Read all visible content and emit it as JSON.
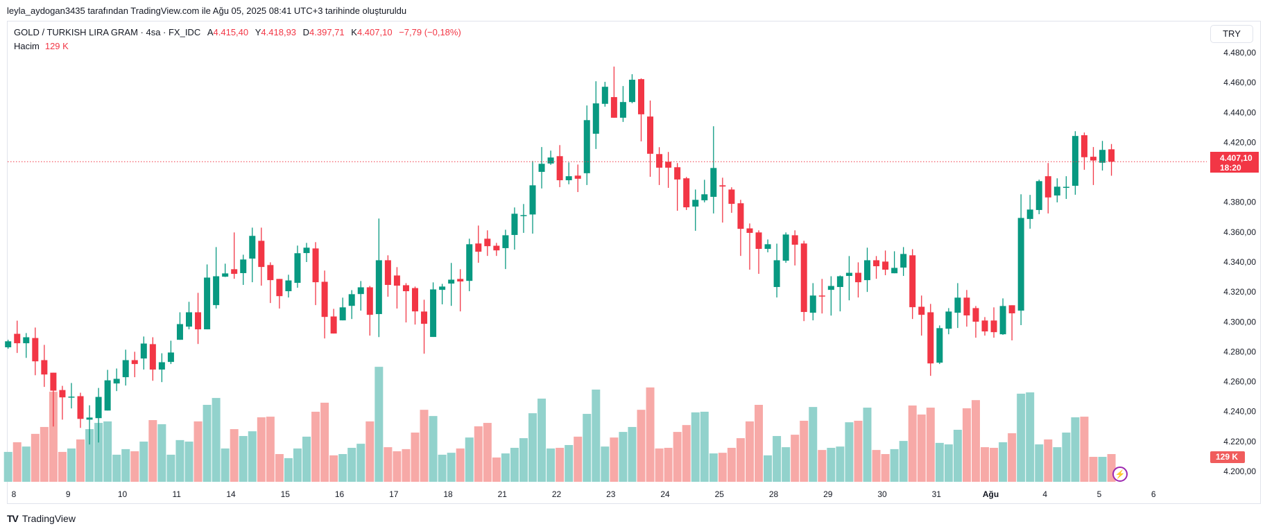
{
  "credit": "leyla_aydogan3435 tarafından TradingView.com ile Ağu 05, 2025 08:41 UTC+3 tarihinde oluşturuldu",
  "legend": {
    "symbol": "GOLD / TURKISH LIRA GRAM · 4sa · FX_IDC",
    "open_label": "A",
    "open": "4.415,40",
    "high_label": "Y",
    "high": "4.418,93",
    "low_label": "D",
    "low": "4.397,71",
    "close_label": "K",
    "close": "4.407,10",
    "change": "−7,79 (−0,18%)",
    "volume_label": "Hacim",
    "volume": "129 K"
  },
  "currency_button": "TRY",
  "price_tag": {
    "price": "4.407,10",
    "countdown": "18:20"
  },
  "volume_tag": "129 K",
  "logo_text": "TradingView",
  "colors": {
    "up": "#089981",
    "down": "#f23645",
    "vol_up": "#92d2cc",
    "vol_down": "#f7a9a7",
    "tag": "#f23645"
  },
  "chart_data": {
    "type": "candlestick",
    "title": "GOLD / TURKISH LIRA GRAM · 4sa · FX_IDC",
    "ylim": [
      4200,
      4480
    ],
    "yticks": [
      "4.480,00",
      "4.460,00",
      "4.440,00",
      "4.420,00",
      "4.400,00",
      "4.380,00",
      "4.360,00",
      "4.340,00",
      "4.320,00",
      "4.300,00",
      "4.280,00",
      "4.260,00",
      "4.240,00",
      "4.220,00",
      "4.200,00"
    ],
    "ytick_values": [
      4480,
      4460,
      4440,
      4420,
      4400,
      4380,
      4360,
      4340,
      4320,
      4300,
      4280,
      4260,
      4240,
      4220,
      4200
    ],
    "xticks": [
      "8",
      "9",
      "10",
      "11",
      "14",
      "15",
      "16",
      "17",
      "18",
      "21",
      "22",
      "23",
      "24",
      "25",
      "28",
      "29",
      "30",
      "31",
      "Ağu",
      "4",
      "5",
      "6"
    ],
    "last_price": 4407.1,
    "fields": [
      "open",
      "high",
      "low",
      "close",
      "volume_k"
    ],
    "candles": [
      [
        4283,
        4288,
        4282,
        4287,
        139
      ],
      [
        4292,
        4300.8,
        4279.2,
        4285.7,
        184
      ],
      [
        4285.7,
        4292.5,
        4275.9,
        4289.7,
        164
      ],
      [
        4289.2,
        4296.2,
        4264.3,
        4273.6,
        223
      ],
      [
        4274.4,
        4284.6,
        4256.5,
        4264.8,
        255
      ],
      [
        4266,
        4266,
        4230,
        4254,
        419
      ],
      [
        4254.4,
        4257.2,
        4234.6,
        4249.5,
        139
      ],
      [
        4250,
        4259.1,
        4242.1,
        4250,
        155
      ],
      [
        4250.3,
        4252.6,
        4229.1,
        4235.1,
        197
      ],
      [
        4234.6,
        4244.2,
        4218,
        4236,
        245
      ],
      [
        4235.6,
        4255.8,
        4219.3,
        4249.8,
        274
      ],
      [
        4240.7,
        4267.9,
        4240.7,
        4260.9,
        281
      ],
      [
        4258.8,
        4268.8,
        4253.7,
        4261.9,
        126
      ],
      [
        4263,
        4281.4,
        4257.4,
        4274.4,
        152
      ],
      [
        4274.4,
        4280,
        4263,
        4271.8,
        142
      ],
      [
        4275.5,
        4290.2,
        4268.1,
        4285.5,
        187
      ],
      [
        4285.1,
        4289.7,
        4260.6,
        4268.1,
        287
      ],
      [
        4268.1,
        4279,
        4259.7,
        4273,
        268
      ],
      [
        4273.2,
        4287.4,
        4271.8,
        4279.5,
        126
      ],
      [
        4288,
        4306.4,
        4288,
        4298.5,
        194
      ],
      [
        4296.8,
        4313.4,
        4295,
        4306.4,
        187
      ],
      [
        4306.4,
        4319.4,
        4285.2,
        4295,
        281
      ],
      [
        4295,
        4338.4,
        4295,
        4329.6,
        358
      ],
      [
        4311.2,
        4350,
        4308.9,
        4330.5,
        390
      ],
      [
        4330.2,
        4338.9,
        4330,
        4332.4,
        155
      ],
      [
        4335.2,
        4359.8,
        4328.8,
        4332.1,
        245
      ],
      [
        4332.6,
        4344.9,
        4324.7,
        4341.7,
        213
      ],
      [
        4342.3,
        4363,
        4326.5,
        4357.5,
        235
      ],
      [
        4354.2,
        4363,
        4324.2,
        4336.7,
        300
      ],
      [
        4338,
        4339.8,
        4312.6,
        4327.9,
        303
      ],
      [
        4328.7,
        4328.7,
        4308.9,
        4317.2,
        129
      ],
      [
        4320.5,
        4331.5,
        4316.3,
        4327.7,
        110
      ],
      [
        4326.1,
        4351,
        4322.8,
        4345.9,
        155
      ],
      [
        4346,
        4352.8,
        4340,
        4349.6,
        210
      ],
      [
        4349.1,
        4353.3,
        4311.2,
        4326.5,
        326
      ],
      [
        4326.8,
        4334.3,
        4288.9,
        4303.3,
        368
      ],
      [
        4303.6,
        4308.7,
        4292.2,
        4292.2,
        123
      ],
      [
        4301,
        4316.2,
        4301,
        4309.7,
        129
      ],
      [
        4310.7,
        4321.2,
        4301.9,
        4318.5,
        158
      ],
      [
        4318.6,
        4327.3,
        4307.5,
        4323.1,
        177
      ],
      [
        4323.1,
        4324,
        4290.8,
        4304.7,
        281
      ],
      [
        4305.2,
        4369.1,
        4289.8,
        4341.2,
        535
      ],
      [
        4341.2,
        4344.5,
        4316.8,
        4324.7,
        161
      ],
      [
        4331,
        4336.6,
        4308.9,
        4324.2,
        142
      ],
      [
        4324.5,
        4325.9,
        4299.6,
        4320.5,
        152
      ],
      [
        4322.6,
        4323.6,
        4298.2,
        4307,
        229
      ],
      [
        4306.9,
        4314.8,
        4278.7,
        4298.7,
        335
      ],
      [
        4289.9,
        4326.4,
        4289.9,
        4321.7,
        306
      ],
      [
        4321.4,
        4325.4,
        4311.7,
        4323.6,
        126
      ],
      [
        4325.6,
        4339.4,
        4310.7,
        4328.2,
        135
      ],
      [
        4328.7,
        4335.2,
        4307,
        4327,
        155
      ],
      [
        4327.4,
        4355.6,
        4320.5,
        4351.9,
        206
      ],
      [
        4352.4,
        4364.4,
        4339.5,
        4346.9,
        258
      ],
      [
        4355.6,
        4361.2,
        4344.1,
        4350.6,
        274
      ],
      [
        4350.9,
        4352.8,
        4344.1,
        4347.8,
        113
      ],
      [
        4349.3,
        4361.6,
        4335.3,
        4357.9,
        132
      ],
      [
        4358.1,
        4376.5,
        4348.3,
        4372.3,
        158
      ],
      [
        4370.8,
        4378.8,
        4359.5,
        4371.4,
        203
      ],
      [
        4371.8,
        4407.6,
        4359,
        4391.3,
        319
      ],
      [
        4400.3,
        4416.9,
        4389.2,
        4405.7,
        387
      ],
      [
        4405.9,
        4414.5,
        4405,
        4409.9,
        155
      ],
      [
        4410.8,
        4418.2,
        4390.1,
        4394.7,
        158
      ],
      [
        4394.7,
        4406.6,
        4392,
        4397.4,
        171
      ],
      [
        4397.8,
        4405.2,
        4386.8,
        4395.7,
        210
      ],
      [
        4399.4,
        4444.7,
        4391.5,
        4434.9,
        316
      ],
      [
        4425.8,
        4460.9,
        4415.6,
        4446.1,
        429
      ],
      [
        4445.8,
        4460.5,
        4443.9,
        4457.2,
        164
      ],
      [
        4450.3,
        4470.7,
        4436.5,
        4436.5,
        206
      ],
      [
        4436.5,
        4457.7,
        4433.7,
        4447,
        232
      ],
      [
        4447,
        4465.6,
        4446.2,
        4461.9,
        255
      ],
      [
        4462.3,
        4462.8,
        4420.7,
        4438.8,
        335
      ],
      [
        4437.3,
        4448,
        4397,
        4412.4,
        439
      ],
      [
        4412.2,
        4416.8,
        4391.5,
        4403.1,
        155
      ],
      [
        4407.1,
        4413.6,
        4389.6,
        4403.1,
        158
      ],
      [
        4403.4,
        4406.2,
        4374.3,
        4395.2,
        232
      ],
      [
        4396,
        4396.9,
        4374.8,
        4376.6,
        264
      ],
      [
        4377.1,
        4388.5,
        4360.9,
        4381.6,
        323
      ],
      [
        4381.3,
        4395,
        4379.9,
        4385.3,
        326
      ],
      [
        4383.6,
        4430.8,
        4372.5,
        4402.9,
        132
      ],
      [
        4391.3,
        4396.4,
        4366.4,
        4390.5,
        135
      ],
      [
        4388.5,
        4390,
        4372.9,
        4378.9,
        158
      ],
      [
        4379.3,
        4381.6,
        4344.1,
        4362.2,
        203
      ],
      [
        4362.5,
        4365.8,
        4334.9,
        4359.5,
        281
      ],
      [
        4359.8,
        4361.2,
        4332.1,
        4348.8,
        358
      ],
      [
        4348.8,
        4355.1,
        4346.5,
        4351.9,
        123
      ],
      [
        4323.3,
        4352.3,
        4316.3,
        4341.2,
        213
      ],
      [
        4340.9,
        4359.8,
        4339.5,
        4358.4,
        161
      ],
      [
        4357.9,
        4361.2,
        4337.7,
        4351.6,
        219
      ],
      [
        4352.4,
        4354.2,
        4300.5,
        4306.6,
        284
      ],
      [
        4306.1,
        4325.9,
        4301,
        4317.6,
        348
      ],
      [
        4317.6,
        4328.7,
        4305.6,
        4317.4,
        148
      ],
      [
        4321.4,
        4330.5,
        4304.2,
        4324,
        158
      ],
      [
        4323.3,
        4331,
        4307,
        4330.5,
        164
      ],
      [
        4330.7,
        4344,
        4314.4,
        4332.8,
        277
      ],
      [
        4332.8,
        4339.8,
        4316.3,
        4326.5,
        284
      ],
      [
        4327.9,
        4349.6,
        4320,
        4341.2,
        345
      ],
      [
        4341.2,
        4344,
        4328.8,
        4337.2,
        148
      ],
      [
        4340.3,
        4347.7,
        4331.2,
        4334.9,
        129
      ],
      [
        4332.5,
        4347.2,
        4332.5,
        4336.1,
        152
      ],
      [
        4336.3,
        4350,
        4330.7,
        4345.4,
        190
      ],
      [
        4344.5,
        4348.6,
        4301.9,
        4309.8,
        355
      ],
      [
        4310.1,
        4317.6,
        4290.8,
        4304.7,
        313
      ],
      [
        4306.4,
        4312,
        4263.9,
        4272.2,
        345
      ],
      [
        4272.7,
        4297.6,
        4271.8,
        4295.8,
        181
      ],
      [
        4295.4,
        4309.2,
        4291.7,
        4306.9,
        174
      ],
      [
        4306.1,
        4325.9,
        4295.9,
        4316.2,
        242
      ],
      [
        4316.2,
        4321.3,
        4296.8,
        4304.3,
        342
      ],
      [
        4309.2,
        4310.6,
        4289.4,
        4300.1,
        380
      ],
      [
        4300.9,
        4303.2,
        4290.8,
        4293.6,
        161
      ],
      [
        4300.9,
        4309.7,
        4289.4,
        4293.1,
        158
      ],
      [
        4291.7,
        4315.7,
        4291.3,
        4310.6,
        184
      ],
      [
        4311.1,
        4311.1,
        4287.6,
        4305.7,
        226
      ],
      [
        4307.5,
        4385.3,
        4297.8,
        4369.5,
        410
      ],
      [
        4368.8,
        4384.9,
        4362.3,
        4375.1,
        416
      ],
      [
        4374.8,
        4395.1,
        4372,
        4394.1,
        174
      ],
      [
        4397.4,
        4406.2,
        4372.5,
        4383.2,
        197
      ],
      [
        4384.5,
        4396,
        4379.9,
        4390.4,
        161
      ],
      [
        4390.2,
        4397.4,
        4382.2,
        4390.3,
        229
      ],
      [
        4391,
        4427.5,
        4385,
        4424.3,
        300
      ],
      [
        4424.8,
        4426.6,
        4401.7,
        4410.1,
        303
      ],
      [
        4410.4,
        4416.9,
        4391.5,
        4407.9,
        116
      ],
      [
        4406.4,
        4421,
        4401.2,
        4415,
        116
      ],
      [
        4415.4,
        4418.93,
        4397.71,
        4407.1,
        129
      ]
    ]
  }
}
